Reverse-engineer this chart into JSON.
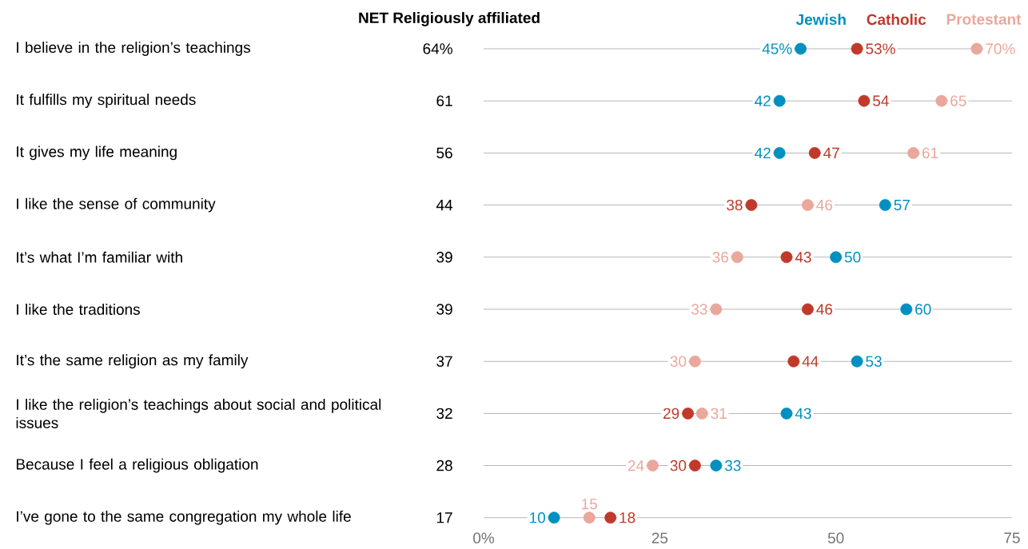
{
  "chart_data": [
    {
      "type": "other",
      "title": "NET Religiously affiliated",
      "value_labels": [
        "64%",
        "61",
        "56",
        "44",
        "39",
        "39",
        "37",
        "32",
        "28",
        "17"
      ]
    },
    {
      "type": "scatter",
      "orientation": "horizontal",
      "categories": [
        "I believe in the religion’s teachings",
        "It fulfills my spiritual needs",
        "It gives my life meaning",
        "I like the sense of community",
        "It’s what I’m familiar with",
        "I like the traditions",
        "It’s the same religion as my family",
        "I like the religion’s teachings about social and political issues",
        "Because I feel a religious obligation",
        "I’ve gone to the same congregation my whole life"
      ],
      "xlim": [
        0,
        75
      ],
      "xticks": [
        {
          "value": 0,
          "label": "0%"
        },
        25,
        50,
        75
      ],
      "grid": "y",
      "legend": "top right",
      "marker": "circle",
      "series": [
        {
          "name": "Jewish",
          "color": "#0090c0",
          "values": [
            45,
            42,
            42,
            57,
            50,
            60,
            53,
            43,
            33,
            10
          ],
          "value_labels": [
            "45%",
            "42",
            "42",
            "57",
            "50",
            "60",
            "53",
            "43",
            "33",
            "10"
          ]
        },
        {
          "name": "Catholic",
          "color": "#c0392b",
          "values": [
            53,
            54,
            47,
            38,
            43,
            46,
            44,
            29,
            30,
            18
          ],
          "value_labels": [
            "53%",
            "54",
            "47",
            "38",
            "43",
            "46",
            "44",
            "29",
            "30",
            "18"
          ]
        },
        {
          "name": "Protestant",
          "color": "#eaa79c",
          "values": [
            70,
            65,
            61,
            46,
            36,
            33,
            30,
            31,
            24,
            15
          ],
          "value_labels": [
            "70%",
            "65",
            "61",
            "46",
            "36",
            "33",
            "30",
            "31",
            "24",
            "15"
          ]
        }
      ]
    }
  ]
}
